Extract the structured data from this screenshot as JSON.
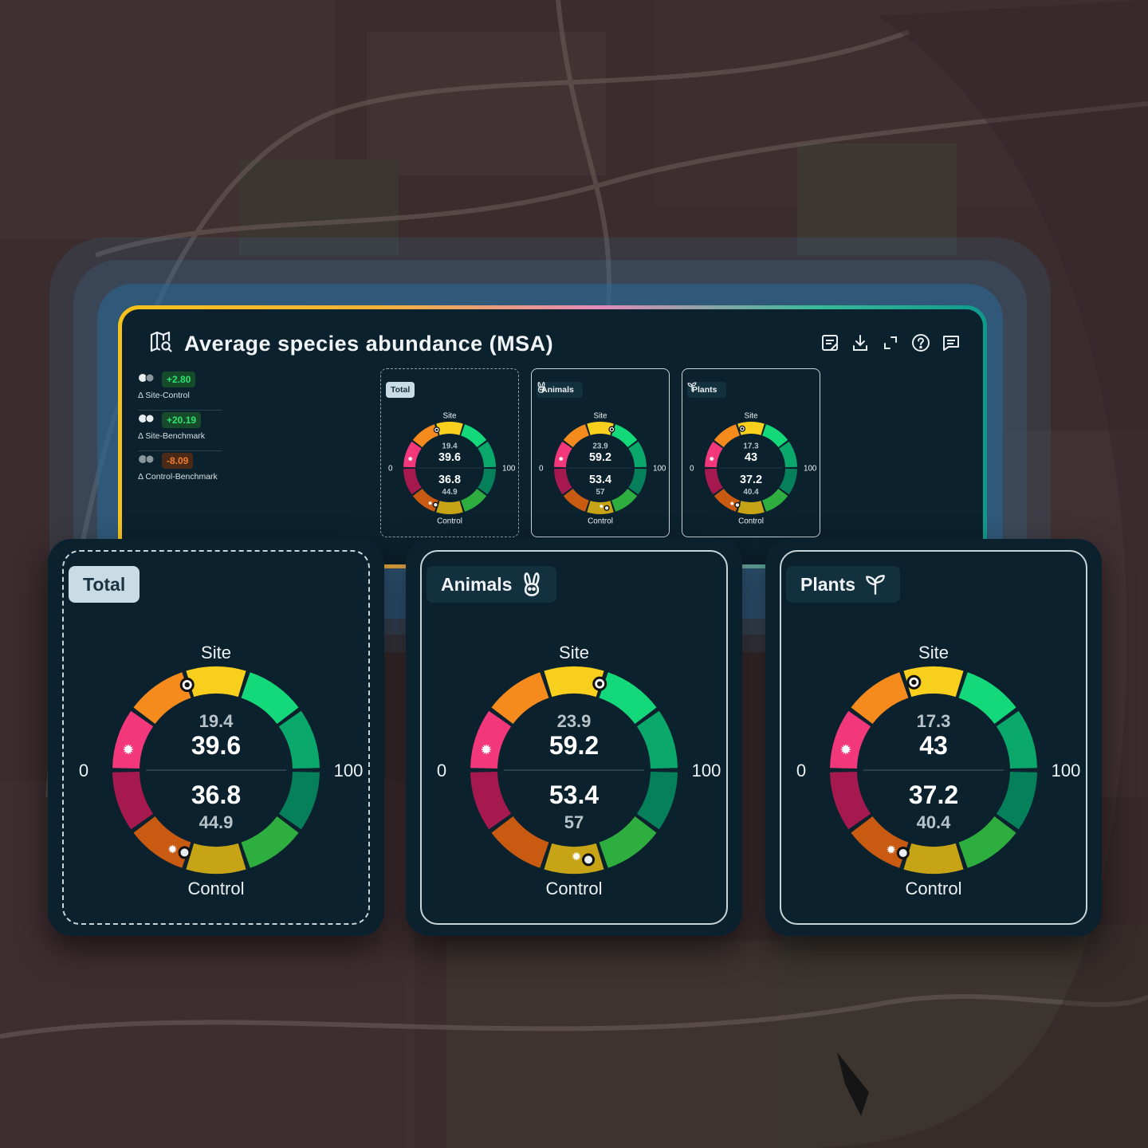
{
  "header": {
    "title": "Average species abundance (MSA)"
  },
  "toolbar": {
    "icons": [
      "notes-icon",
      "download-icon",
      "expand-icon",
      "help-icon",
      "comment-icon"
    ]
  },
  "deltas": [
    {
      "value": "+2.80",
      "label": "Δ Site-Control",
      "tone": "positive",
      "colors": [
        "#e8edf0",
        "#8a969c"
      ]
    },
    {
      "value": "+20.19",
      "label": "Δ Site-Benchmark",
      "tone": "positive",
      "colors": [
        "#e8edf0",
        "#e8edf0"
      ]
    },
    {
      "value": "-8.09",
      "label": "Δ Control-Benchmark",
      "tone": "negative",
      "colors": [
        "#8a969c",
        "#8a969c"
      ]
    }
  ],
  "panels": [
    {
      "id": "total",
      "label": "Total",
      "icon": null,
      "site_label": "Site",
      "control_label": "Control",
      "min": "0",
      "max": "100",
      "site_small": "19.4",
      "site_big": "39.6",
      "control_big": "36.8",
      "control_small": "44.9",
      "site_marker_value": 39.6,
      "control_marker_value": 36.8
    },
    {
      "id": "animals",
      "label": "Animals",
      "icon": "rabbit-icon",
      "site_label": "Site",
      "control_label": "Control",
      "min": "0",
      "max": "100",
      "site_small": "23.9",
      "site_big": "59.2",
      "control_big": "53.4",
      "control_small": "57",
      "site_marker_value": 59.2,
      "control_marker_value": 53.4
    },
    {
      "id": "plants",
      "label": "Plants",
      "icon": "sprout-icon",
      "site_label": "Site",
      "control_label": "Control",
      "min": "0",
      "max": "100",
      "site_small": "17.3",
      "site_big": "43",
      "control_big": "37.2",
      "control_small": "40.4",
      "site_marker_value": 43,
      "control_marker_value": 37.2
    }
  ],
  "gauge_colors": {
    "site": [
      "#f2377a",
      "#f58b1c",
      "#f8cf1c",
      "#14d97a",
      "#0aa86a"
    ],
    "control": [
      "#a5194e",
      "#c85a12",
      "#c7a316",
      "#2dae3f",
      "#06805a"
    ]
  }
}
